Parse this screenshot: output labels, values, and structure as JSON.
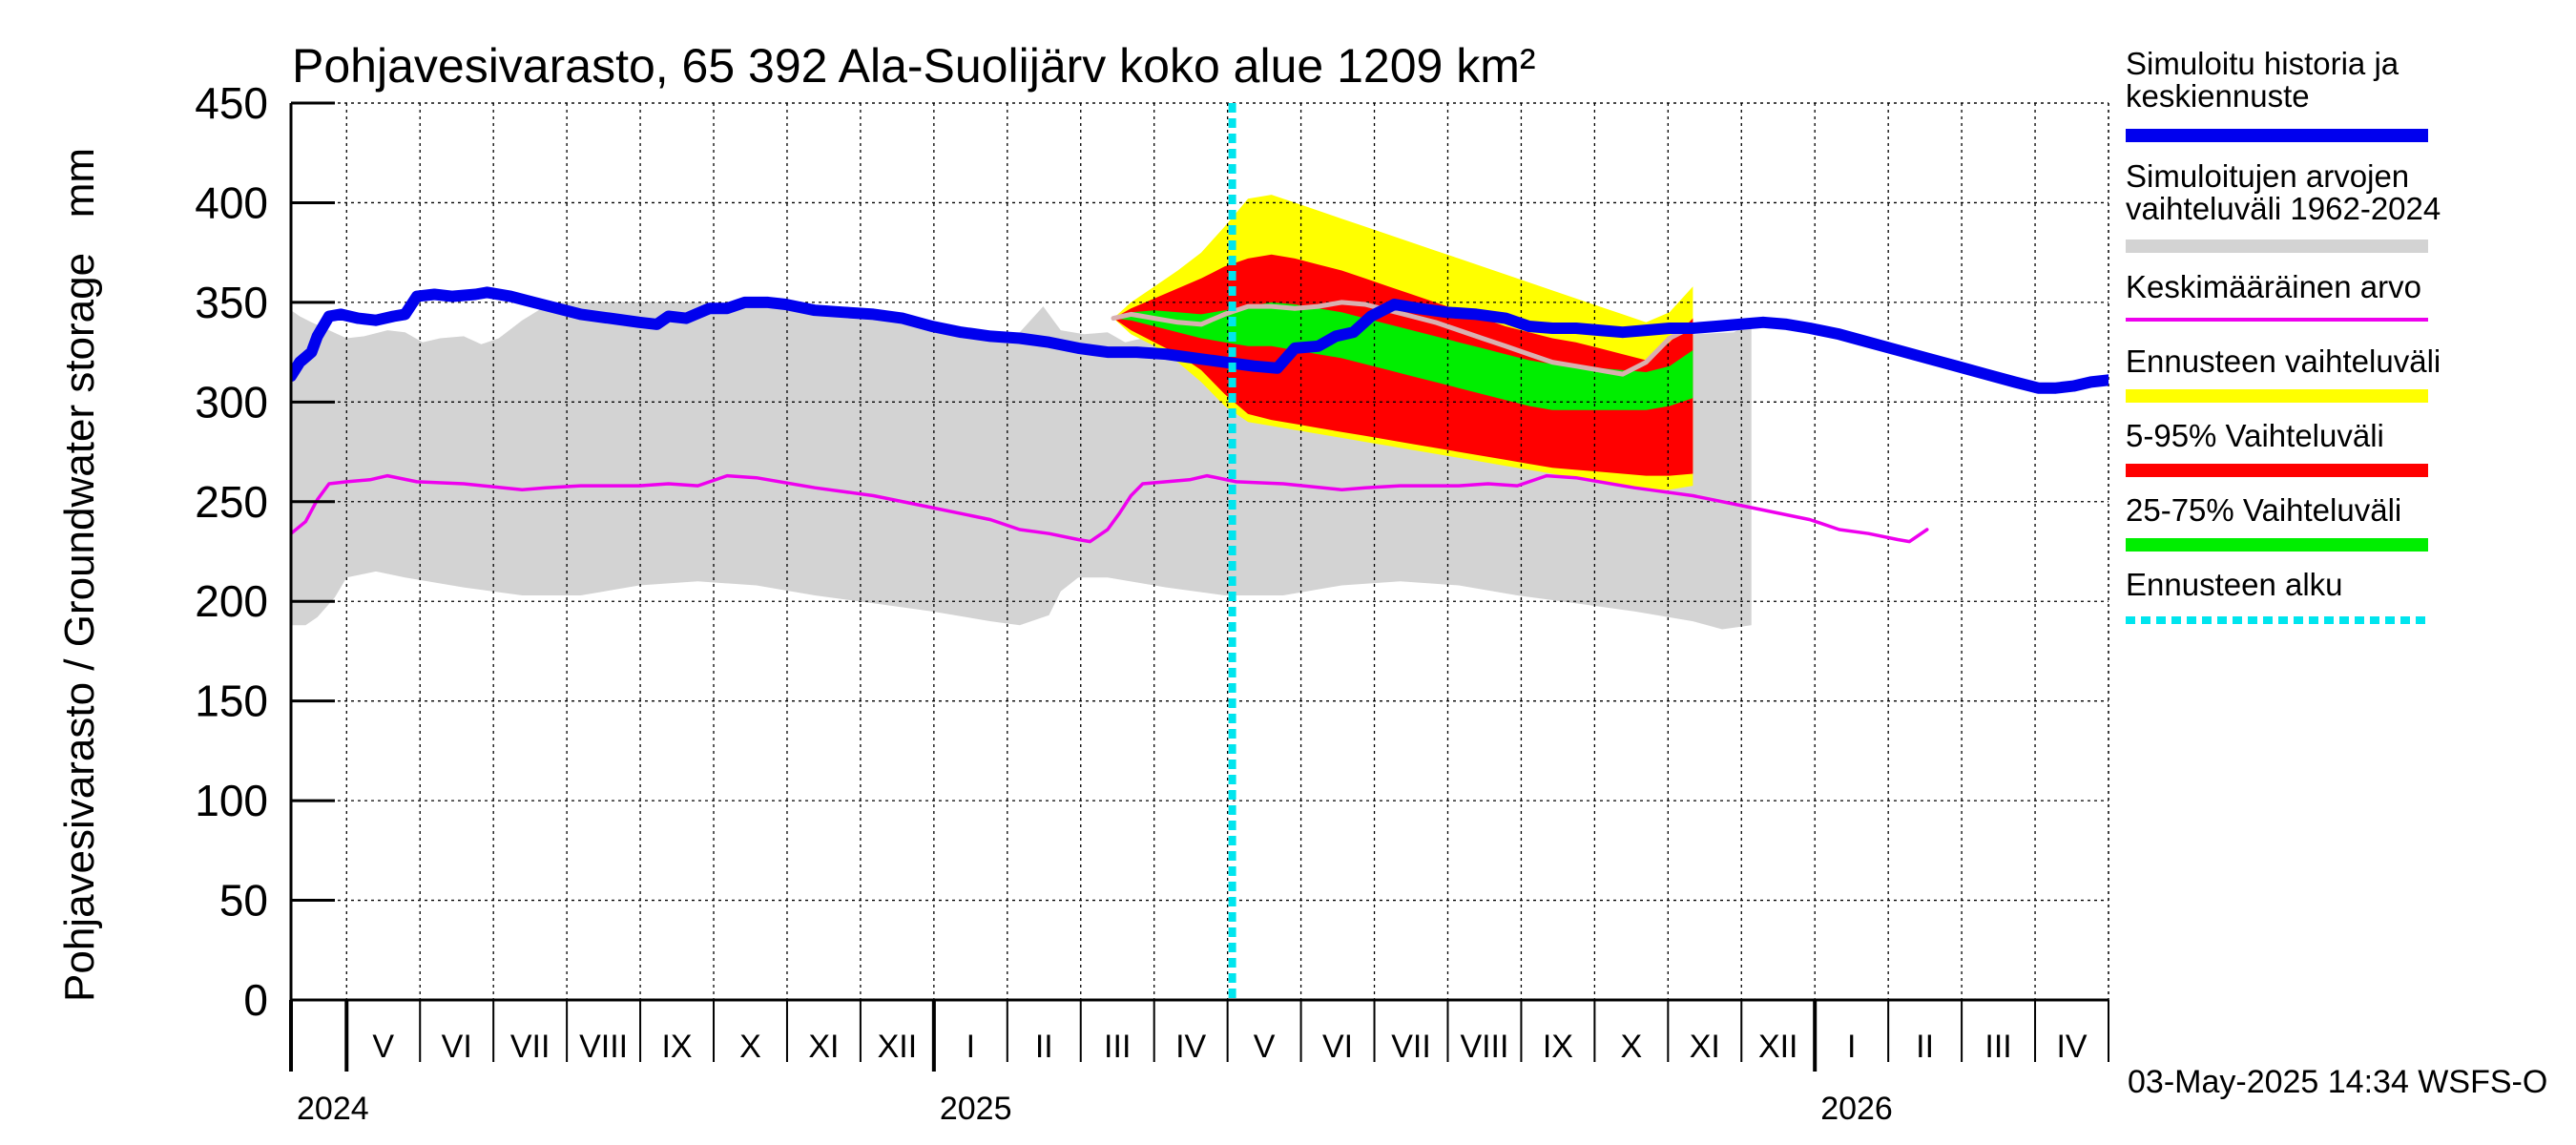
{
  "chart_data": {
    "type": "area",
    "title": "Pohjavesivarasto, 65 392 Ala-Suolijärv koko alue 1209 km²",
    "ylabel": "Pohjavesivarasto / Groundwater storage   mm",
    "ylim": [
      0,
      450
    ],
    "yticks": [
      0,
      50,
      100,
      150,
      200,
      250,
      300,
      350,
      400,
      450
    ],
    "x_start": "2024-04-01",
    "x_end": "2026-05-31",
    "forecast_start": "2025-05-03",
    "months": [
      "V",
      "VI",
      "VII",
      "VIII",
      "IX",
      "X",
      "XI",
      "XII",
      "I",
      "II",
      "III",
      "IV",
      "V",
      "VI",
      "VII",
      "VIII",
      "IX",
      "X",
      "XI",
      "XII",
      "I",
      "II",
      "III",
      "IV"
    ],
    "years": [
      {
        "label": "2024",
        "month_index": 0
      },
      {
        "label": "2025",
        "month_index": 8
      },
      {
        "label": "2026",
        "month_index": 20
      }
    ],
    "timestamp": "03-May-2025 14:34 WSFS-O",
    "legend": [
      {
        "key": "history",
        "label_lines": [
          "Simuloitu historia ja",
          "keskiennuste"
        ],
        "color": "#0000ee"
      },
      {
        "key": "range",
        "label_lines": [
          "Simuloitujen arvojen",
          "vaihteluväli 1962-2024"
        ],
        "color": "#d3d3d3"
      },
      {
        "key": "mean",
        "label_lines": [
          "Keskimääräinen arvo"
        ],
        "color": "#ee00ee"
      },
      {
        "key": "forecast_range",
        "label_lines": [
          "Ennusteen vaihteluväli"
        ],
        "color": "#ffff00"
      },
      {
        "key": "p5_95",
        "label_lines": [
          "5-95% Vaihteluväli"
        ],
        "color": "#ff0000"
      },
      {
        "key": "p25_75",
        "label_lines": [
          "25-75% Vaihteluväli"
        ],
        "color": "#00ee00"
      },
      {
        "key": "forecast_start",
        "label_lines": [
          "Ennusteen alku"
        ],
        "color": "#00e5ee"
      }
    ],
    "series": {
      "range_upper": [
        [
          -0.95,
          346
        ],
        [
          -0.9,
          345
        ],
        [
          -0.8,
          343
        ],
        [
          -0.6,
          340
        ],
        [
          -0.3,
          336
        ],
        [
          0,
          332
        ],
        [
          0.3,
          333
        ],
        [
          0.7,
          336
        ],
        [
          1,
          335
        ],
        [
          1.3,
          330
        ],
        [
          1.6,
          332
        ],
        [
          2,
          333
        ],
        [
          2.3,
          329
        ],
        [
          2.6,
          332
        ],
        [
          3,
          341
        ],
        [
          3.5,
          350
        ],
        [
          4,
          350
        ],
        [
          5,
          350
        ],
        [
          6,
          350
        ],
        [
          7,
          349
        ],
        [
          8,
          346
        ],
        [
          9,
          343
        ],
        [
          10,
          339
        ],
        [
          11,
          334
        ],
        [
          11.5,
          335
        ],
        [
          11.9,
          348
        ],
        [
          12.2,
          336
        ],
        [
          12.6,
          334
        ],
        [
          13,
          335
        ],
        [
          13.3,
          330
        ],
        [
          13.6,
          332
        ],
        [
          14,
          333
        ],
        [
          14.3,
          329
        ],
        [
          14.6,
          332
        ],
        [
          15,
          341
        ],
        [
          15.5,
          350
        ],
        [
          16,
          350
        ],
        [
          17,
          350
        ],
        [
          18,
          350
        ],
        [
          19,
          349
        ],
        [
          20,
          346
        ],
        [
          21,
          343
        ],
        [
          22,
          339
        ],
        [
          23,
          334
        ],
        [
          23.7,
          335
        ],
        [
          24,
          340
        ]
      ],
      "range_lower": [
        [
          -0.95,
          188
        ],
        [
          -0.7,
          188
        ],
        [
          -0.5,
          192
        ],
        [
          -0.2,
          202
        ],
        [
          0,
          212
        ],
        [
          0.5,
          215
        ],
        [
          1,
          212
        ],
        [
          2,
          207
        ],
        [
          3,
          203
        ],
        [
          4,
          203
        ],
        [
          5,
          208
        ],
        [
          6,
          210
        ],
        [
          7,
          208
        ],
        [
          8,
          203
        ],
        [
          9,
          199
        ],
        [
          10,
          195
        ],
        [
          11,
          190
        ],
        [
          11.5,
          188
        ],
        [
          12,
          193
        ],
        [
          12.2,
          205
        ],
        [
          12.5,
          212
        ],
        [
          13,
          212
        ],
        [
          14,
          207
        ],
        [
          15,
          203
        ],
        [
          16,
          203
        ],
        [
          17,
          208
        ],
        [
          18,
          210
        ],
        [
          19,
          208
        ],
        [
          20,
          203
        ],
        [
          21,
          199
        ],
        [
          22,
          195
        ],
        [
          23,
          190
        ],
        [
          23.5,
          186
        ],
        [
          24,
          188
        ]
      ],
      "mean": [
        [
          -0.95,
          234
        ],
        [
          -0.7,
          240
        ],
        [
          -0.5,
          251
        ],
        [
          -0.3,
          259
        ],
        [
          0,
          260
        ],
        [
          0.4,
          261
        ],
        [
          0.7,
          263
        ],
        [
          1.2,
          260
        ],
        [
          2,
          259
        ],
        [
          3,
          256
        ],
        [
          3.4,
          257
        ],
        [
          4,
          258
        ],
        [
          5,
          258
        ],
        [
          5.5,
          259
        ],
        [
          6,
          258
        ],
        [
          6.5,
          263
        ],
        [
          7,
          262
        ],
        [
          8,
          257
        ],
        [
          9,
          253
        ],
        [
          10,
          247
        ],
        [
          11,
          241
        ],
        [
          11.5,
          236
        ],
        [
          12,
          234
        ],
        [
          12.5,
          231
        ],
        [
          12.7,
          230
        ],
        [
          13,
          236
        ],
        [
          13.2,
          244
        ],
        [
          13.4,
          253
        ],
        [
          13.6,
          259
        ],
        [
          14,
          260
        ],
        [
          14.4,
          261
        ],
        [
          14.7,
          263
        ],
        [
          15.2,
          260
        ],
        [
          16,
          259
        ],
        [
          17,
          256
        ],
        [
          17.4,
          257
        ],
        [
          18,
          258
        ],
        [
          19,
          258
        ],
        [
          19.5,
          259
        ],
        [
          20,
          258
        ],
        [
          20.5,
          263
        ],
        [
          21,
          262
        ],
        [
          22,
          257
        ],
        [
          23,
          253
        ],
        [
          24,
          247
        ],
        [
          25,
          241
        ],
        [
          25.5,
          236
        ],
        [
          26,
          234
        ],
        [
          26.5,
          231
        ],
        [
          26.7,
          230
        ],
        [
          27,
          236
        ]
      ],
      "history": [
        [
          -0.95,
          313
        ],
        [
          -0.8,
          320
        ],
        [
          -0.6,
          325
        ],
        [
          -0.5,
          333
        ],
        [
          -0.3,
          343
        ],
        [
          -0.1,
          344
        ],
        [
          0.2,
          342
        ],
        [
          0.5,
          341
        ],
        [
          0.8,
          343
        ],
        [
          1,
          344
        ],
        [
          1.2,
          353
        ],
        [
          1.5,
          354
        ],
        [
          1.8,
          353
        ],
        [
          2.2,
          354
        ],
        [
          2.4,
          355
        ],
        [
          2.8,
          353
        ],
        [
          3.2,
          350
        ],
        [
          3.6,
          347
        ],
        [
          4,
          344
        ],
        [
          4.5,
          342
        ],
        [
          5,
          340
        ],
        [
          5.3,
          339
        ],
        [
          5.5,
          343
        ],
        [
          5.8,
          342
        ],
        [
          6.2,
          347
        ],
        [
          6.5,
          347
        ],
        [
          6.8,
          350
        ],
        [
          7.2,
          350
        ],
        [
          7.5,
          349
        ],
        [
          8,
          346
        ],
        [
          8.5,
          345
        ],
        [
          9,
          344
        ],
        [
          9.5,
          342
        ],
        [
          10,
          338
        ],
        [
          10.5,
          335
        ],
        [
          11,
          333
        ],
        [
          11.5,
          332
        ],
        [
          12,
          330
        ],
        [
          12.5,
          327
        ],
        [
          13,
          325
        ],
        [
          13.5,
          325
        ],
        [
          14,
          324
        ],
        [
          14.5,
          322
        ],
        [
          15,
          320
        ],
        [
          15.5,
          318
        ],
        [
          15.9,
          317
        ],
        [
          16.2,
          327
        ],
        [
          16.6,
          328
        ],
        [
          16.9,
          333
        ],
        [
          17.2,
          335
        ],
        [
          17.5,
          343
        ],
        [
          17.9,
          349
        ],
        [
          18.3,
          347
        ],
        [
          18.8,
          345
        ],
        [
          19.3,
          344
        ],
        [
          19.8,
          342
        ],
        [
          20.2,
          338
        ],
        [
          20.6,
          337
        ],
        [
          21,
          337
        ],
        [
          21.4,
          336
        ],
        [
          21.8,
          335
        ],
        [
          22.2,
          336
        ],
        [
          22.6,
          337
        ],
        [
          23,
          337
        ],
        [
          23.4,
          338
        ],
        [
          23.8,
          339
        ],
        [
          24.2,
          340
        ],
        [
          24.6,
          339
        ],
        [
          25,
          337
        ],
        [
          25.5,
          334
        ],
        [
          26,
          330
        ],
        [
          26.5,
          326
        ],
        [
          27,
          322
        ],
        [
          27.5,
          318
        ],
        [
          28,
          314
        ],
        [
          28.5,
          310
        ],
        [
          28.9,
          307
        ],
        [
          29.2,
          307
        ],
        [
          29.5,
          308
        ],
        [
          29.8,
          310
        ],
        [
          30.1,
          311
        ]
      ],
      "forecast": {
        "x": [
          13.1,
          13.4,
          13.8,
          14.2,
          14.6,
          15,
          15.4,
          15.8,
          16.2,
          16.6,
          17,
          17.4,
          17.8,
          18.2,
          18.6,
          19,
          19.4,
          19.8,
          20.2,
          20.6,
          21,
          21.4,
          21.8,
          22.2,
          22.6,
          23
        ],
        "yellow_upper": [
          342,
          350,
          358,
          366,
          375,
          388,
          402,
          404,
          400,
          396,
          392,
          388,
          384,
          380,
          376,
          372,
          368,
          364,
          360,
          356,
          352,
          348,
          344,
          340,
          345,
          358
        ],
        "red_upper": [
          342,
          347,
          352,
          357,
          362,
          368,
          372,
          374,
          372,
          369,
          366,
          362,
          358,
          354,
          350,
          346,
          342,
          338,
          335,
          332,
          330,
          327,
          324,
          321,
          330,
          342
        ],
        "green_upper": [
          342,
          345,
          346,
          345,
          344,
          346,
          348,
          350,
          349,
          347,
          345,
          342,
          339,
          336,
          333,
          330,
          327,
          324,
          321,
          319,
          318,
          317,
          316,
          315,
          318,
          326
        ],
        "green_lower": [
          342,
          341,
          338,
          335,
          332,
          330,
          328,
          328,
          326,
          324,
          322,
          319,
          316,
          313,
          310,
          307,
          304,
          301,
          298,
          296,
          296,
          296,
          296,
          296,
          298,
          302
        ],
        "red_lower": [
          342,
          336,
          330,
          324,
          316,
          304,
          294,
          291,
          289,
          287,
          285,
          283,
          281,
          279,
          277,
          275,
          273,
          271,
          269,
          267,
          266,
          265,
          264,
          263,
          263,
          264
        ],
        "yellow_lower": [
          342,
          334,
          328,
          320,
          310,
          298,
          290,
          288,
          286,
          284,
          282,
          280,
          278,
          276,
          274,
          272,
          270,
          268,
          266,
          264,
          262,
          260,
          258,
          256,
          256,
          258
        ],
        "max_trace": [
          342,
          344,
          342,
          340,
          339,
          344,
          348,
          348,
          347,
          348,
          350,
          349,
          346,
          343,
          340,
          336,
          332,
          328,
          324,
          320,
          318,
          316,
          314,
          320,
          332,
          338
        ]
      }
    }
  }
}
